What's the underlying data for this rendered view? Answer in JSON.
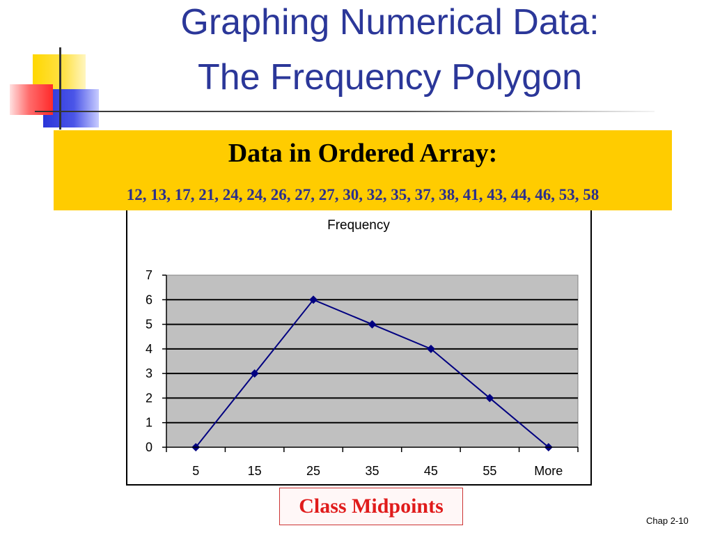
{
  "slide": {
    "title_line1": "Graphing Numerical Data:",
    "title_line2": "The Frequency Polygon",
    "data_heading": "Data in Ordered Array:",
    "data_values": "12, 13, 17, 21, 24, 24, 26, 27, 27, 30, 32, 35, 37, 38, 41, 43, 44, 46, 53, 58",
    "class_label": "Class Midpoints",
    "footer": "Chap 2-10"
  },
  "colors": {
    "title": "#2b3799",
    "highlight_box": "#ffcc00",
    "series_line": "#000080",
    "plot_area": "#c0c0c0",
    "class_label": "#e01b1b"
  },
  "chart_data": {
    "type": "line",
    "title": "Frequency",
    "categories": [
      "5",
      "15",
      "25",
      "35",
      "45",
      "55",
      "More"
    ],
    "series": [
      {
        "values": [
          0,
          3,
          6,
          5,
          4,
          2,
          0
        ]
      }
    ],
    "ylim": [
      0,
      7
    ],
    "yticks": [
      0,
      1,
      2,
      3,
      4,
      5,
      6,
      7
    ],
    "grid": true,
    "marker": "diamond",
    "legend": "none"
  }
}
